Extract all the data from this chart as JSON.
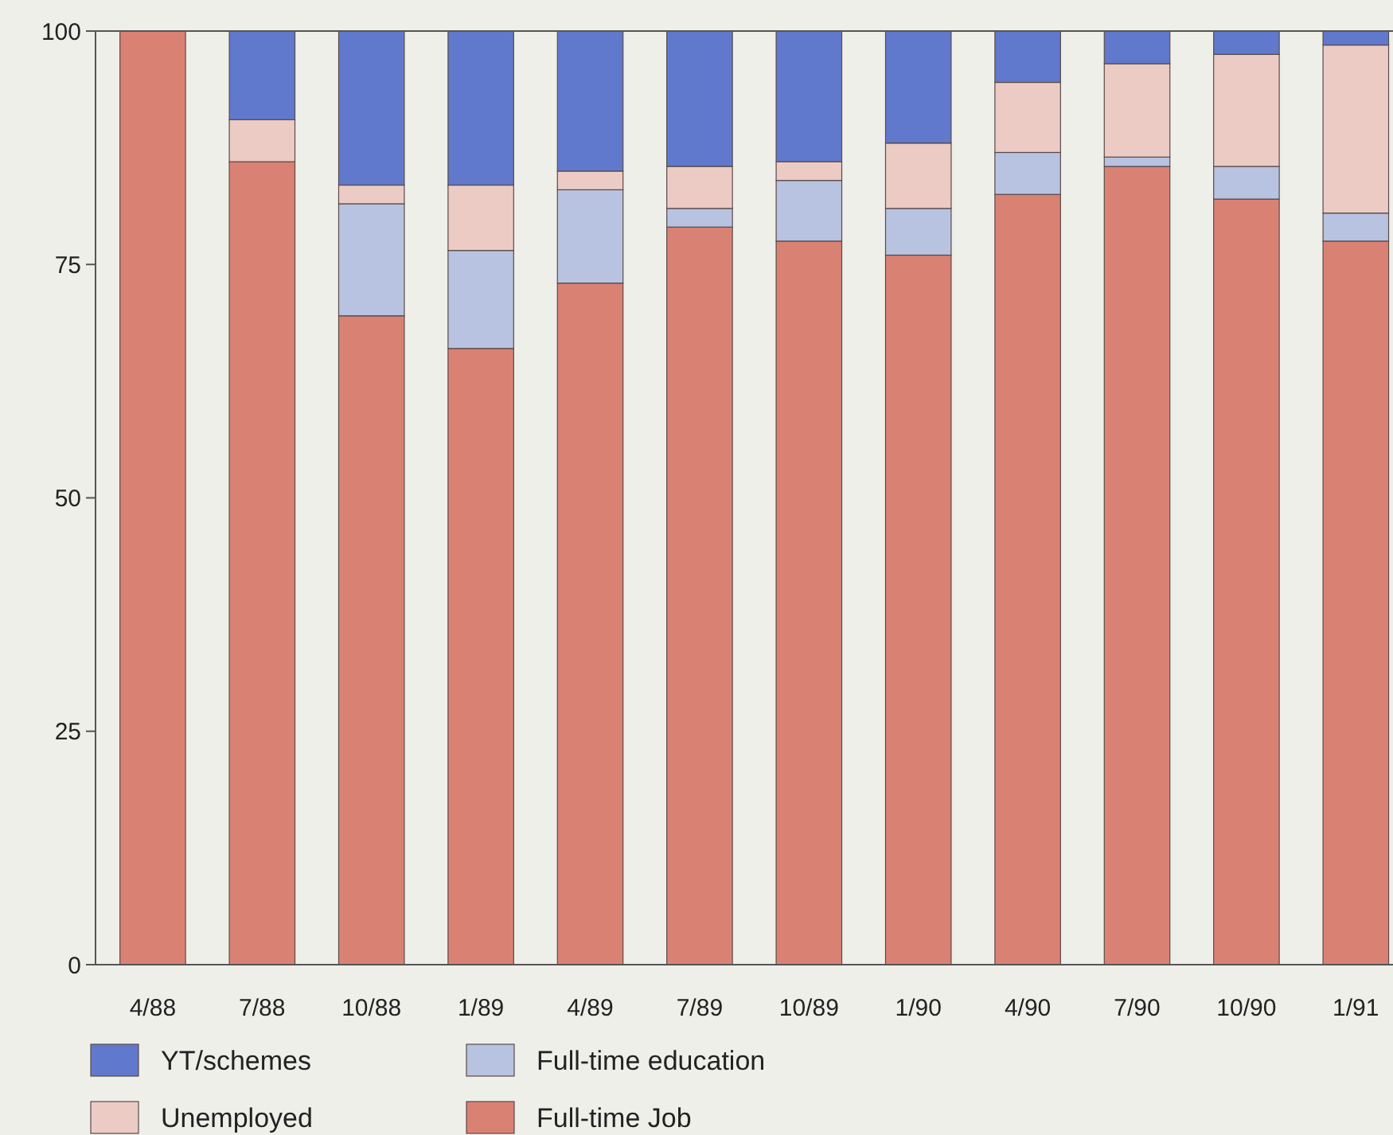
{
  "chart_data": {
    "type": "bar",
    "stacked": true,
    "categories": [
      "4/88",
      "7/88",
      "10/88",
      "1/89",
      "4/89",
      "7/89",
      "10/89",
      "1/90",
      "4/90",
      "7/90",
      "10/90",
      "1/91"
    ],
    "series": [
      {
        "name": "Full-time Job",
        "color": "#d98274",
        "values": [
          100,
          86,
          69.5,
          66,
          73,
          79,
          77.5,
          76,
          82.5,
          85.5,
          82,
          77.5
        ]
      },
      {
        "name": "Full-time education",
        "color": "#b7c3e0",
        "values": [
          0,
          0,
          12,
          10.5,
          10,
          2,
          6.5,
          5,
          4.5,
          1,
          3.5,
          3
        ]
      },
      {
        "name": "Unemployed",
        "color": "#eccbc4",
        "values": [
          0,
          4.5,
          2,
          7,
          2,
          4.5,
          2,
          7,
          7.5,
          10,
          12,
          18
        ]
      },
      {
        "name": "YT/schemes",
        "color": "#6079cc",
        "values": [
          0,
          9.5,
          16.5,
          16.5,
          15,
          14.5,
          14,
          12,
          5.5,
          3.5,
          2.5,
          1.5
        ]
      }
    ],
    "ylim": [
      0,
      100
    ],
    "yticks": [
      0,
      25,
      50,
      75,
      100
    ],
    "grid": false,
    "legend": "bottom"
  }
}
